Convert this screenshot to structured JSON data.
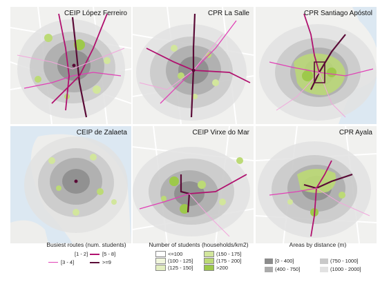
{
  "panels": [
    {
      "title": "CEIP López Ferreiro"
    },
    {
      "title": "CPR La Salle"
    },
    {
      "title": "CPR Santiago Apóstol"
    },
    {
      "title": "CEIP de Zalaeta"
    },
    {
      "title": "CEIP Virxe do Mar"
    },
    {
      "title": "CPR Ayala"
    }
  ],
  "legend_routes": {
    "title": "Busiest routes (num. students)",
    "items": [
      {
        "label": "[1 - 2]",
        "color": "#f2a6dc",
        "width": 1
      },
      {
        "label": "[3 - 4]",
        "color": "#e040b5",
        "width": 1.5
      },
      {
        "label": "[5 - 8]",
        "color": "#b0106e",
        "width": 2
      },
      {
        "label": ">=9",
        "color": "#5a0a36",
        "width": 2.5
      }
    ]
  },
  "legend_density": {
    "title": "Number of students (households/km2)",
    "items": [
      {
        "label": "<=100",
        "color": "#ffffff"
      },
      {
        "label": "(100 - 125]",
        "color": "#f1f6dc"
      },
      {
        "label": "(125 - 150]",
        "color": "#e3eec0"
      },
      {
        "label": "(150 - 175]",
        "color": "#d2e69c"
      },
      {
        "label": "(175 - 200]",
        "color": "#bcda76"
      },
      {
        "label": ">200",
        "color": "#9dc94a"
      }
    ]
  },
  "legend_distance": {
    "title": "Areas by distance (m)",
    "items": [
      {
        "label": "[0 - 400]",
        "color": "#8c8c8c"
      },
      {
        "label": "(400 - 750]",
        "color": "#ababab"
      },
      {
        "label": "(750 - 1000]",
        "color": "#c9c9c9"
      },
      {
        "label": "(1000 - 2000]",
        "color": "#e2e2e2"
      }
    ]
  }
}
